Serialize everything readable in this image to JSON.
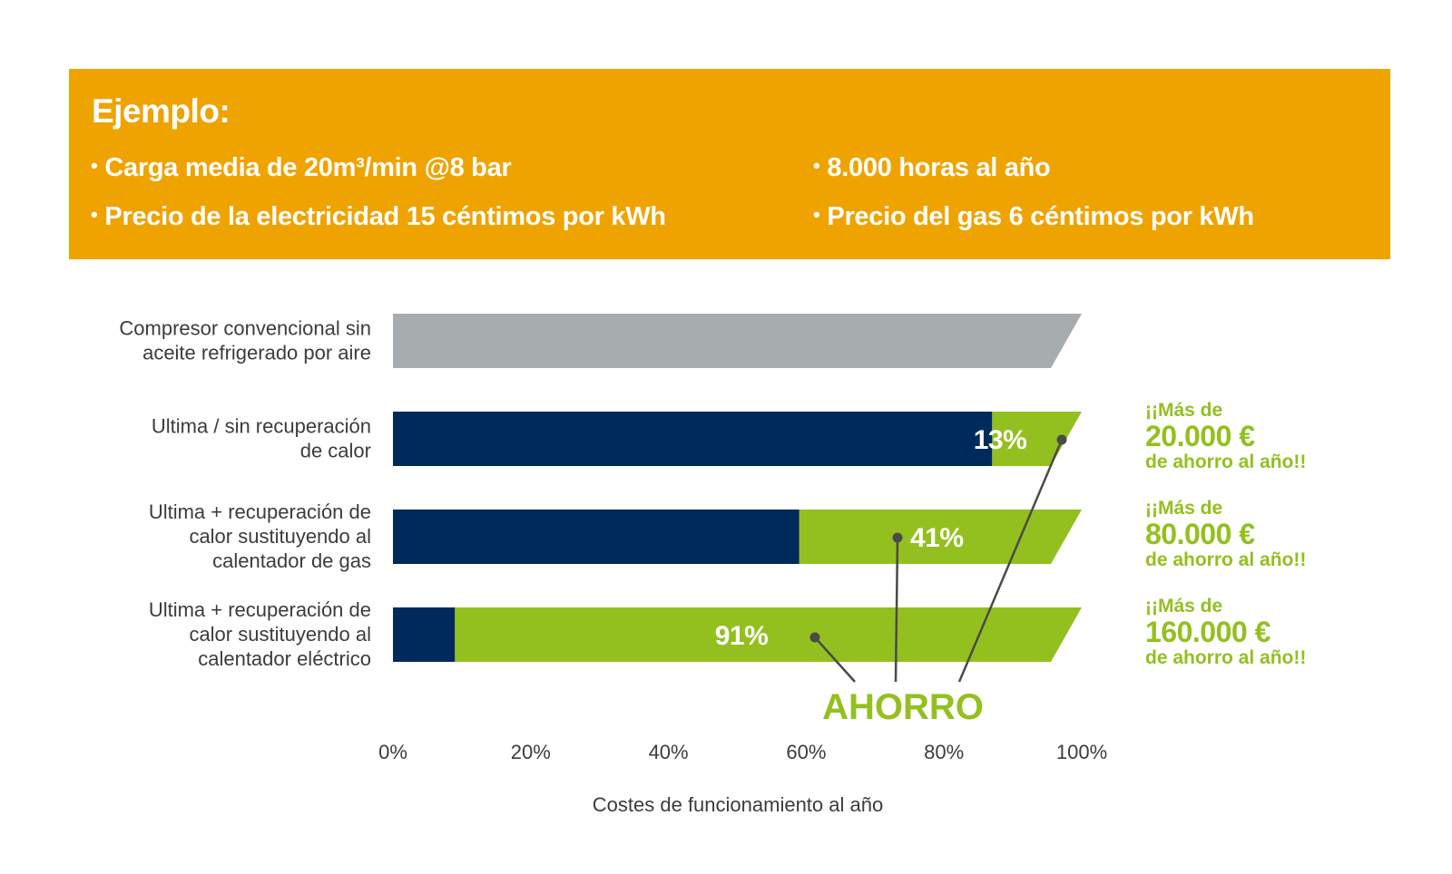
{
  "banner": {
    "title": "Ejemplo:",
    "bullets": [
      "Carga media de 20m³/min @8 bar",
      "Precio de la electricidad 15 céntimos por kWh",
      "8.000 horas al año",
      "Precio del gas 6 céntimos por kWh"
    ],
    "bullet_glyph": "•"
  },
  "colors": {
    "banner": "#EFA300",
    "conventional": "#A7ACAE",
    "cost": "#002A5C",
    "saving": "#93C01F",
    "text_gray": "#3c3c3c",
    "callout_line": "#4a4a4a"
  },
  "chart_data": {
    "type": "bar",
    "orientation": "horizontal",
    "stacked": true,
    "categories": [
      [
        "Compresor convencional sin",
        "aceite refrigerado por aire"
      ],
      [
        "Ultima / sin recuperación",
        "de calor"
      ],
      [
        "Ultima + recuperación de",
        "calor sustituyendo al",
        "calentador de gas"
      ],
      [
        "Ultima + recuperación de",
        "calor sustituyendo al",
        "calentador eléctrico"
      ]
    ],
    "series": [
      {
        "role": "conventional",
        "values": [
          100,
          0,
          0,
          0
        ]
      },
      {
        "role": "cost",
        "values": [
          0,
          87,
          59,
          9
        ]
      },
      {
        "role": "saving",
        "values": [
          0,
          13,
          41,
          91
        ]
      }
    ],
    "bar_labels": [
      "",
      "13%",
      "41%",
      "91%"
    ],
    "xlim": [
      0,
      100
    ],
    "xticks": [
      "0%",
      "20%",
      "40%",
      "60%",
      "80%",
      "100%"
    ],
    "xlabel": "Costes de funcionamiento al año",
    "annotation": "AHORRO",
    "savings_notes": [
      null,
      {
        "line1": "¡¡Más de",
        "amount": "20.000 €",
        "line3": "de ahorro al año!!"
      },
      {
        "line1": "¡¡Más de",
        "amount": "80.000 €",
        "line3": "de ahorro al año!!"
      },
      {
        "line1": "¡¡Más de",
        "amount": "160.000 €",
        "line3": "de ahorro al año!!"
      }
    ],
    "grid": false,
    "legend": "none"
  }
}
